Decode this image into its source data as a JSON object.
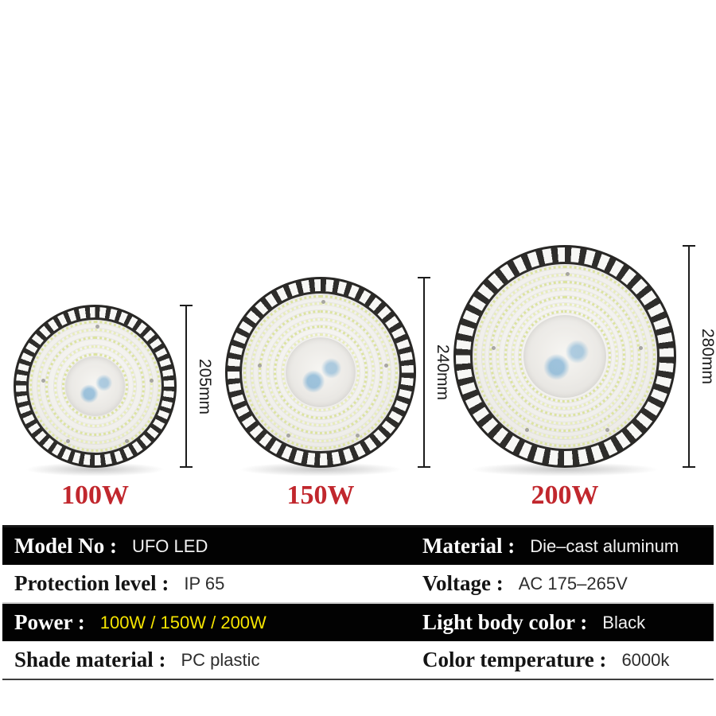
{
  "products": {
    "watt_color": "#c1272d",
    "items": [
      {
        "watt_label": "100W",
        "dimension_label": "205mm"
      },
      {
        "watt_label": "150W",
        "dimension_label": "240mm"
      },
      {
        "watt_label": "200W",
        "dimension_label": "280mm"
      }
    ]
  },
  "spec_table": {
    "rows": [
      {
        "style": "dark",
        "cells": [
          {
            "label": "Model No :",
            "value": "UFO LED"
          },
          {
            "label": "Material :",
            "value": "Die–cast aluminum"
          }
        ]
      },
      {
        "style": "light",
        "cells": [
          {
            "label": "Protection level :",
            "value": "IP 65"
          },
          {
            "label": "Voltage :",
            "value": "AC 175–265V"
          }
        ]
      },
      {
        "style": "dark",
        "cells": [
          {
            "label": "Power :",
            "value": "100W / 150W / 200W",
            "value_color": "#f5e400"
          },
          {
            "label": "Light body color :",
            "value": "Black"
          }
        ]
      },
      {
        "style": "light",
        "cells": [
          {
            "label": "Shade material :",
            "value": "PC plastic"
          },
          {
            "label": "Color temperature :",
            "value": "6000k"
          }
        ]
      }
    ]
  }
}
